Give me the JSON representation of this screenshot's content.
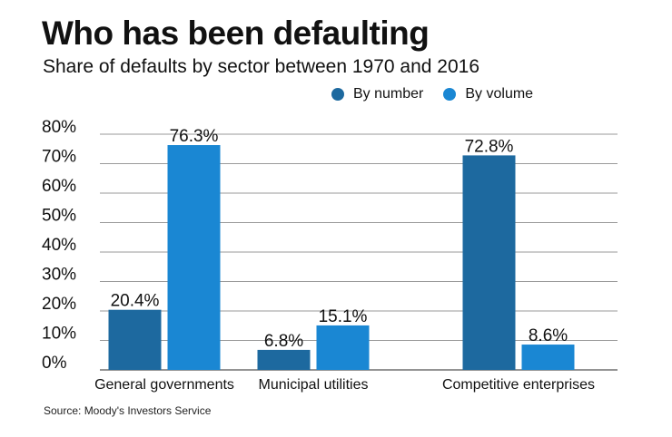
{
  "chart_data": {
    "type": "bar",
    "title": "Who has been defaulting",
    "subtitle": "Share of defaults by sector between 1970 and 2016",
    "categories": [
      "General governments",
      "Municipal utilities",
      "Competitive enterprises"
    ],
    "series": [
      {
        "name": "By number",
        "color": "#1d699f",
        "values": [
          20.4,
          6.8,
          72.8
        ],
        "labels": [
          "20.4%",
          "6.8%",
          "72.8%"
        ]
      },
      {
        "name": "By volume",
        "color": "#1a87d3",
        "values": [
          76.3,
          15.1,
          8.6
        ],
        "labels": [
          "76.3%",
          "15.1%",
          "8.6%"
        ]
      }
    ],
    "ylim": [
      0,
      80
    ],
    "yticks": [
      0,
      10,
      20,
      30,
      40,
      50,
      60,
      70,
      80
    ],
    "ytick_labels": [
      "0%",
      "10%",
      "20%",
      "30%",
      "40%",
      "50%",
      "60%",
      "70%",
      "80%"
    ],
    "grid": true,
    "legend_position": "top-right",
    "source": "Source: Moody's Investors Service"
  }
}
